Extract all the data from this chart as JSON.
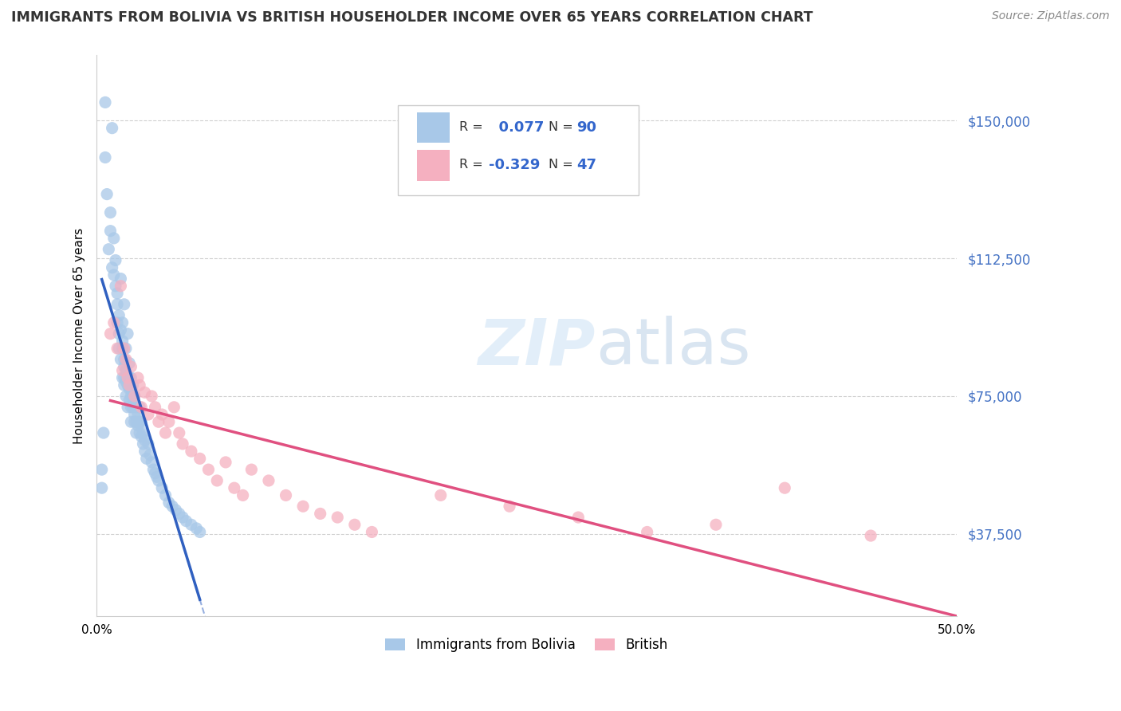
{
  "title": "IMMIGRANTS FROM BOLIVIA VS BRITISH HOUSEHOLDER INCOME OVER 65 YEARS CORRELATION CHART",
  "source": "Source: ZipAtlas.com",
  "ylabel": "Householder Income Over 65 years",
  "yticks": [
    37500,
    75000,
    112500,
    150000
  ],
  "ytick_labels": [
    "$37,500",
    "$75,000",
    "$112,500",
    "$150,000"
  ],
  "xlim": [
    0.0,
    0.5
  ],
  "ylim": [
    15000,
    168000
  ],
  "watermark": "ZIPatlas",
  "bolivia_color": "#a8c8e8",
  "british_color": "#f5b0c0",
  "bolivia_line_color": "#3060c0",
  "british_line_color": "#e05080",
  "bolivia_R": 0.077,
  "bolivia_N": 90,
  "british_R": -0.329,
  "british_N": 47,
  "legend_label_bolivia": "Immigrants from Bolivia",
  "legend_label_british": "British",
  "bolivia_scatter_x": [
    0.004,
    0.005,
    0.005,
    0.006,
    0.007,
    0.008,
    0.008,
    0.009,
    0.009,
    0.01,
    0.01,
    0.011,
    0.011,
    0.012,
    0.012,
    0.012,
    0.013,
    0.013,
    0.013,
    0.014,
    0.014,
    0.014,
    0.015,
    0.015,
    0.015,
    0.015,
    0.016,
    0.016,
    0.016,
    0.016,
    0.016,
    0.017,
    0.017,
    0.017,
    0.017,
    0.018,
    0.018,
    0.018,
    0.018,
    0.019,
    0.019,
    0.019,
    0.019,
    0.02,
    0.02,
    0.02,
    0.02,
    0.02,
    0.021,
    0.021,
    0.021,
    0.022,
    0.022,
    0.022,
    0.022,
    0.023,
    0.023,
    0.023,
    0.024,
    0.024,
    0.025,
    0.025,
    0.025,
    0.026,
    0.026,
    0.027,
    0.027,
    0.028,
    0.028,
    0.029,
    0.03,
    0.031,
    0.032,
    0.033,
    0.034,
    0.035,
    0.036,
    0.038,
    0.04,
    0.042,
    0.044,
    0.046,
    0.048,
    0.05,
    0.052,
    0.055,
    0.058,
    0.06,
    0.003,
    0.003
  ],
  "bolivia_scatter_y": [
    65000,
    155000,
    140000,
    130000,
    115000,
    125000,
    120000,
    148000,
    110000,
    118000,
    108000,
    112000,
    105000,
    100000,
    95000,
    103000,
    97000,
    92000,
    88000,
    93000,
    107000,
    85000,
    90000,
    88000,
    95000,
    80000,
    85000,
    83000,
    80000,
    78000,
    100000,
    82000,
    79000,
    88000,
    75000,
    80000,
    78000,
    92000,
    72000,
    80000,
    77000,
    74000,
    84000,
    75000,
    72000,
    80000,
    68000,
    77000,
    76000,
    72000,
    78000,
    73000,
    70000,
    75000,
    68000,
    72000,
    68000,
    65000,
    70000,
    67000,
    68000,
    65000,
    72000,
    64000,
    68000,
    62000,
    65000,
    60000,
    63000,
    58000,
    62000,
    59000,
    57000,
    55000,
    54000,
    53000,
    52000,
    50000,
    48000,
    46000,
    45000,
    44000,
    43000,
    42000,
    41000,
    40000,
    39000,
    38000,
    55000,
    50000
  ],
  "british_scatter_x": [
    0.008,
    0.01,
    0.012,
    0.014,
    0.015,
    0.016,
    0.017,
    0.018,
    0.019,
    0.02,
    0.022,
    0.024,
    0.025,
    0.026,
    0.028,
    0.03,
    0.032,
    0.034,
    0.036,
    0.038,
    0.04,
    0.042,
    0.045,
    0.048,
    0.05,
    0.055,
    0.06,
    0.065,
    0.07,
    0.075,
    0.08,
    0.085,
    0.09,
    0.1,
    0.11,
    0.12,
    0.13,
    0.14,
    0.15,
    0.16,
    0.2,
    0.24,
    0.28,
    0.32,
    0.36,
    0.4,
    0.45
  ],
  "british_scatter_y": [
    92000,
    95000,
    88000,
    105000,
    82000,
    88000,
    85000,
    80000,
    78000,
    83000,
    75000,
    80000,
    78000,
    72000,
    76000,
    70000,
    75000,
    72000,
    68000,
    70000,
    65000,
    68000,
    72000,
    65000,
    62000,
    60000,
    58000,
    55000,
    52000,
    57000,
    50000,
    48000,
    55000,
    52000,
    48000,
    45000,
    43000,
    42000,
    40000,
    38000,
    48000,
    45000,
    42000,
    38000,
    40000,
    50000,
    37000
  ]
}
